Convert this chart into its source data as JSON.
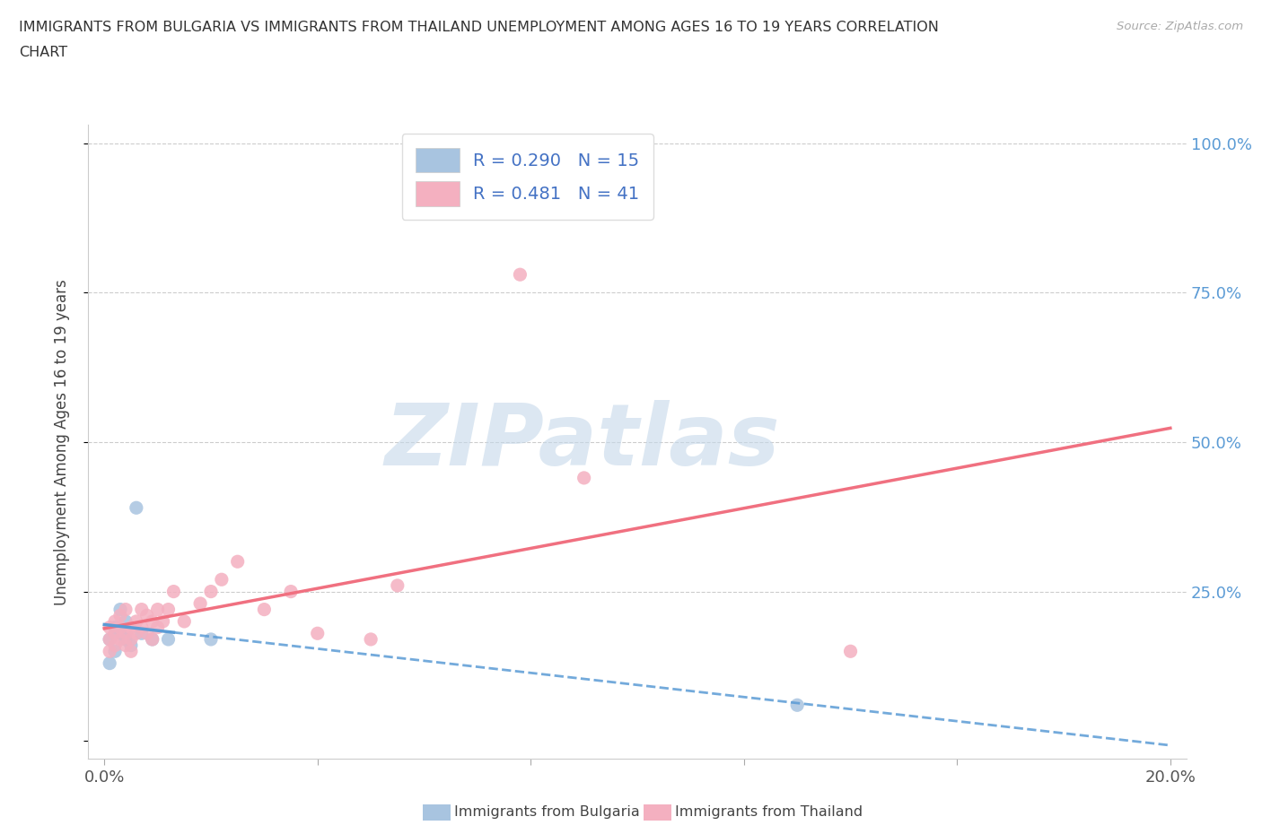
{
  "title_line1": "IMMIGRANTS FROM BULGARIA VS IMMIGRANTS FROM THAILAND UNEMPLOYMENT AMONG AGES 16 TO 19 YEARS CORRELATION",
  "title_line2": "CHART",
  "source": "Source: ZipAtlas.com",
  "ylabel": "Unemployment Among Ages 16 to 19 years",
  "xlim": [
    0.0,
    0.2
  ],
  "ylim": [
    0.0,
    1.0
  ],
  "xtick_positions": [
    0.0,
    0.04,
    0.08,
    0.12,
    0.16,
    0.2
  ],
  "xtick_labels": [
    "0.0%",
    "",
    "",
    "",
    "",
    "20.0%"
  ],
  "ytick_positions": [
    0.0,
    0.25,
    0.5,
    0.75,
    1.0
  ],
  "ytick_labels_right": [
    "",
    "25.0%",
    "50.0%",
    "75.0%",
    "100.0%"
  ],
  "bulgaria_color": "#a8c4e0",
  "thailand_color": "#f4b0c0",
  "bulgaria_line_color": "#5b9bd5",
  "thailand_line_color": "#f07080",
  "R_bulgaria": "0.290",
  "N_bulgaria": "15",
  "R_thailand": "0.481",
  "N_thailand": "41",
  "watermark": "ZIPatlas",
  "watermark_color_zip": "#c8d8ea",
  "watermark_color_atlas": "#b0c8dc",
  "legend_label_bulgaria": "Immigrants from Bulgaria",
  "legend_label_thailand": "Immigrants from Thailand",
  "grid_color": "#cccccc",
  "title_color": "#333333",
  "right_tick_color": "#5b9bd5",
  "bulgaria_x": [
    0.001,
    0.001,
    0.002,
    0.002,
    0.003,
    0.003,
    0.004,
    0.004,
    0.005,
    0.006,
    0.007,
    0.009,
    0.012,
    0.13,
    0.02
  ],
  "bulgaria_y": [
    0.17,
    0.13,
    0.19,
    0.15,
    0.18,
    0.22,
    0.17,
    0.2,
    0.16,
    0.39,
    0.18,
    0.17,
    0.17,
    0.06,
    0.17
  ],
  "thailand_x": [
    0.001,
    0.001,
    0.001,
    0.002,
    0.002,
    0.002,
    0.003,
    0.003,
    0.003,
    0.004,
    0.004,
    0.004,
    0.005,
    0.005,
    0.005,
    0.006,
    0.006,
    0.007,
    0.007,
    0.008,
    0.008,
    0.009,
    0.009,
    0.01,
    0.01,
    0.011,
    0.012,
    0.013,
    0.015,
    0.018,
    0.02,
    0.022,
    0.025,
    0.03,
    0.035,
    0.04,
    0.05,
    0.055,
    0.09,
    0.14,
    0.078
  ],
  "thailand_y": [
    0.17,
    0.19,
    0.15,
    0.18,
    0.2,
    0.16,
    0.19,
    0.17,
    0.21,
    0.18,
    0.22,
    0.16,
    0.19,
    0.17,
    0.15,
    0.2,
    0.18,
    0.22,
    0.19,
    0.21,
    0.18,
    0.2,
    0.17,
    0.19,
    0.22,
    0.2,
    0.22,
    0.25,
    0.2,
    0.23,
    0.25,
    0.27,
    0.3,
    0.22,
    0.25,
    0.18,
    0.17,
    0.26,
    0.44,
    0.15,
    0.78
  ]
}
